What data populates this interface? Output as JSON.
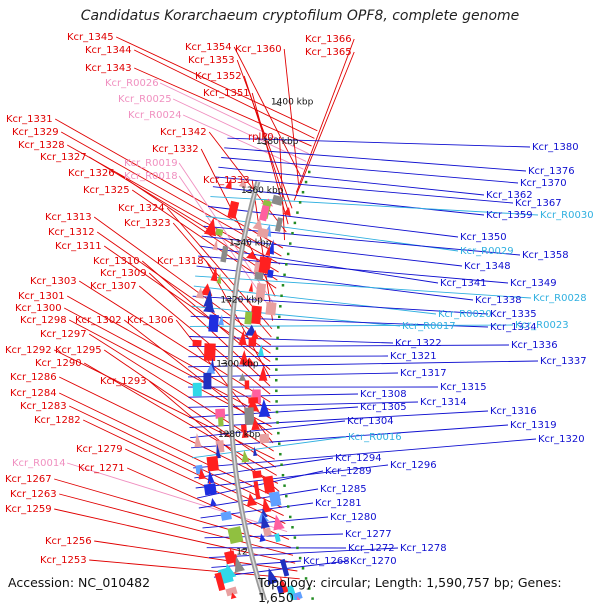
{
  "title": "Candidatus Korarchaeum cryptofilum OPF8, complete genome",
  "accession": "Accession: NC_010482",
  "topology": "Topology: circular; Length: 1,590,757 bp; Genes: 1,650",
  "colors": {
    "left_label": "#e00000",
    "left_rna_label": "#f090c0",
    "right_label": "#1010d0",
    "right_rna_label": "#30b0e0",
    "backbone": "#888888",
    "tick_mark": "#228b22"
  },
  "ticks": [
    {
      "label": "1400 kbp"
    },
    {
      "label": "1380 kbp"
    },
    {
      "label": "1360 kbp"
    },
    {
      "label": "1340 kbp"
    },
    {
      "label": "1320 kbp"
    },
    {
      "label": "1300 kbp"
    },
    {
      "label": "1280 kbp"
    },
    {
      "label": "12"
    }
  ],
  "left_labels": [
    {
      "text": "Kcr_1345",
      "kind": "gene"
    },
    {
      "text": "Kcr_1344",
      "kind": "gene"
    },
    {
      "text": "Kcr_1343",
      "kind": "gene"
    },
    {
      "text": "Kcr_R0026",
      "kind": "rna"
    },
    {
      "text": "Kcr_R0025",
      "kind": "rna"
    },
    {
      "text": "Kcr_R0024",
      "kind": "rna"
    },
    {
      "text": "Kcr_1354",
      "kind": "gene"
    },
    {
      "text": "Kcr_1360",
      "kind": "gene"
    },
    {
      "text": "Kcr_1366",
      "kind": "gene"
    },
    {
      "text": "Kcr_1365",
      "kind": "gene"
    },
    {
      "text": "Kcr_1353",
      "kind": "gene"
    },
    {
      "text": "Kcr_1352",
      "kind": "gene"
    },
    {
      "text": "Kcr_1351",
      "kind": "gene"
    },
    {
      "text": "Kcr_1342",
      "kind": "gene"
    },
    {
      "text": "rplP0",
      "kind": "gene"
    },
    {
      "text": "Kcr_1331",
      "kind": "gene"
    },
    {
      "text": "Kcr_1329",
      "kind": "gene"
    },
    {
      "text": "Kcr_1328",
      "kind": "gene"
    },
    {
      "text": "Kcr_1327",
      "kind": "gene"
    },
    {
      "text": "Kcr_1326",
      "kind": "gene"
    },
    {
      "text": "Kcr_1325",
      "kind": "gene"
    },
    {
      "text": "Kcr_1332",
      "kind": "gene"
    },
    {
      "text": "Kcr_R0019",
      "kind": "rna"
    },
    {
      "text": "Kcr_R0018",
      "kind": "rna"
    },
    {
      "text": "Kcr_1333",
      "kind": "gene"
    },
    {
      "text": "Kcr_1324",
      "kind": "gene"
    },
    {
      "text": "Kcr_1323",
      "kind": "gene"
    },
    {
      "text": "Kcr_1313",
      "kind": "gene"
    },
    {
      "text": "Kcr_1312",
      "kind": "gene"
    },
    {
      "text": "Kcr_1311",
      "kind": "gene"
    },
    {
      "text": "Kcr_1310",
      "kind": "gene"
    },
    {
      "text": "Kcr_1318",
      "kind": "gene"
    },
    {
      "text": "Kcr_1309",
      "kind": "gene"
    },
    {
      "text": "Kcr_1307",
      "kind": "gene"
    },
    {
      "text": "Kcr_1303",
      "kind": "gene"
    },
    {
      "text": "Kcr_1301",
      "kind": "gene"
    },
    {
      "text": "Kcr_1300",
      "kind": "gene"
    },
    {
      "text": "Kcr_1298",
      "kind": "gene"
    },
    {
      "text": "Kcr_1302",
      "kind": "gene"
    },
    {
      "text": "Kcr_1306",
      "kind": "gene"
    },
    {
      "text": "Kcr_1297",
      "kind": "gene"
    },
    {
      "text": "Kcr_1292",
      "kind": "gene"
    },
    {
      "text": "Kcr_1295",
      "kind": "gene"
    },
    {
      "text": "Kcr_1290",
      "kind": "gene"
    },
    {
      "text": "Kcr_1286",
      "kind": "gene"
    },
    {
      "text": "Kcr_1293",
      "kind": "gene"
    },
    {
      "text": "Kcr_1284",
      "kind": "gene"
    },
    {
      "text": "Kcr_1283",
      "kind": "gene"
    },
    {
      "text": "Kcr_1282",
      "kind": "gene"
    },
    {
      "text": "Kcr_1279",
      "kind": "gene"
    },
    {
      "text": "Kcr_R0014",
      "kind": "rna"
    },
    {
      "text": "Kcr_1271",
      "kind": "gene"
    },
    {
      "text": "Kcr_1267",
      "kind": "gene"
    },
    {
      "text": "Kcr_1263",
      "kind": "gene"
    },
    {
      "text": "Kcr_1259",
      "kind": "gene"
    },
    {
      "text": "Kcr_1256",
      "kind": "gene"
    },
    {
      "text": "Kcr_1253",
      "kind": "gene"
    }
  ],
  "right_labels": [
    {
      "text": "Kcr_1380",
      "kind": "gene"
    },
    {
      "text": "Kcr_1376",
      "kind": "gene"
    },
    {
      "text": "Kcr_1370",
      "kind": "gene"
    },
    {
      "text": "Kcr_1362",
      "kind": "gene"
    },
    {
      "text": "Kcr_1367",
      "kind": "gene"
    },
    {
      "text": "Kcr_1359",
      "kind": "gene"
    },
    {
      "text": "Kcr_R0030",
      "kind": "rna"
    },
    {
      "text": "Kcr_1350",
      "kind": "gene"
    },
    {
      "text": "Kcr_R0029",
      "kind": "rna"
    },
    {
      "text": "Kcr_1358",
      "kind": "gene"
    },
    {
      "text": "Kcr_1348",
      "kind": "gene"
    },
    {
      "text": "Kcr_1341",
      "kind": "gene"
    },
    {
      "text": "Kcr_1349",
      "kind": "gene"
    },
    {
      "text": "Kcr_1338",
      "kind": "gene"
    },
    {
      "text": "Kcr_R0028",
      "kind": "rna"
    },
    {
      "text": "Kcr_R0020",
      "kind": "rna"
    },
    {
      "text": "Kcr_1335",
      "kind": "gene"
    },
    {
      "text": "Kcr_R0017",
      "kind": "rna"
    },
    {
      "text": "Kcr_1334",
      "kind": "gene"
    },
    {
      "text": "Kcr_R0023",
      "kind": "rna"
    },
    {
      "text": "Kcr_1322",
      "kind": "gene"
    },
    {
      "text": "Kcr_1336",
      "kind": "gene"
    },
    {
      "text": "Kcr_1321",
      "kind": "gene"
    },
    {
      "text": "Kcr_1337",
      "kind": "gene"
    },
    {
      "text": "Kcr_1317",
      "kind": "gene"
    },
    {
      "text": "Kcr_1315",
      "kind": "gene"
    },
    {
      "text": "Kcr_1308",
      "kind": "gene"
    },
    {
      "text": "Kcr_1314",
      "kind": "gene"
    },
    {
      "text": "Kcr_1305",
      "kind": "gene"
    },
    {
      "text": "Kcr_1316",
      "kind": "gene"
    },
    {
      "text": "Kcr_1304",
      "kind": "gene"
    },
    {
      "text": "Kcr_1319",
      "kind": "gene"
    },
    {
      "text": "Kcr_R0016",
      "kind": "rna"
    },
    {
      "text": "Kcr_1320",
      "kind": "gene"
    },
    {
      "text": "Kcr_1294",
      "kind": "gene"
    },
    {
      "text": "Kcr_1296",
      "kind": "gene"
    },
    {
      "text": "Kcr_1289",
      "kind": "gene"
    },
    {
      "text": "Kcr_1285",
      "kind": "gene"
    },
    {
      "text": "Kcr_1281",
      "kind": "gene"
    },
    {
      "text": "Kcr_1280",
      "kind": "gene"
    },
    {
      "text": "Kcr_1277",
      "kind": "gene"
    },
    {
      "text": "Kcr_1272",
      "kind": "gene"
    },
    {
      "text": "Kcr_1278",
      "kind": "gene"
    },
    {
      "text": "Kcr_1268",
      "kind": "gene"
    },
    {
      "text": "Kcr_1270",
      "kind": "gene"
    }
  ]
}
